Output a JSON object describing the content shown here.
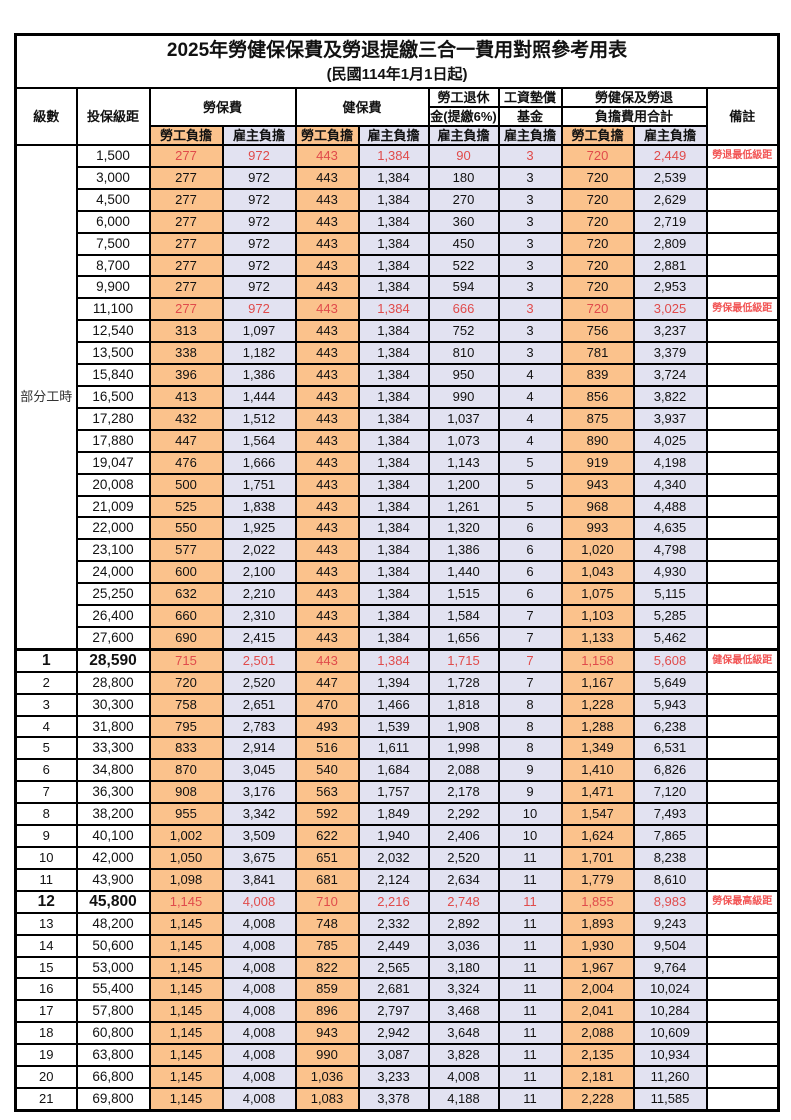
{
  "title": "2025年勞健保保費及勞退提繳三合一費用對照參考用表",
  "subtitle": "(民國114年1月1日起)",
  "colors": {
    "employee_bg": "#fbc28c",
    "employer_bg": "#e2e2f1",
    "highlight_text": "#e04b4b",
    "note_text": "#f25555",
    "border": "#000000"
  },
  "header": {
    "level": "級數",
    "bracket": "投保級距",
    "labor_fee": "勞保費",
    "health_fee": "健保費",
    "pension_line1": "勞工退休",
    "pension_line2": "金(提繳6%)",
    "wage_fund_line1": "工資墊償",
    "wage_fund_line2": "基金",
    "total_line1": "勞健保及勞退",
    "total_line2": "負擔費用合計",
    "note": "備註",
    "employee": "勞工負擔",
    "employer": "雇主負擔"
  },
  "part_time_label": "部分工時",
  "part_time_span": 23,
  "value_col_classes": [
    "emp",
    "er",
    "emp",
    "er",
    "er",
    "er",
    "emp",
    "er"
  ],
  "rows": [
    {
      "level": "",
      "bracket": "1,500",
      "values": [
        "277",
        "972",
        "443",
        "1,384",
        "90",
        "3",
        "720",
        "2,449"
      ],
      "note": "勞退最低級距",
      "red": true,
      "bold": false
    },
    {
      "level": "",
      "bracket": "3,000",
      "values": [
        "277",
        "972",
        "443",
        "1,384",
        "180",
        "3",
        "720",
        "2,539"
      ],
      "note": "",
      "red": false,
      "bold": false
    },
    {
      "level": "",
      "bracket": "4,500",
      "values": [
        "277",
        "972",
        "443",
        "1,384",
        "270",
        "3",
        "720",
        "2,629"
      ],
      "note": "",
      "red": false,
      "bold": false
    },
    {
      "level": "",
      "bracket": "6,000",
      "values": [
        "277",
        "972",
        "443",
        "1,384",
        "360",
        "3",
        "720",
        "2,719"
      ],
      "note": "",
      "red": false,
      "bold": false
    },
    {
      "level": "",
      "bracket": "7,500",
      "values": [
        "277",
        "972",
        "443",
        "1,384",
        "450",
        "3",
        "720",
        "2,809"
      ],
      "note": "",
      "red": false,
      "bold": false
    },
    {
      "level": "",
      "bracket": "8,700",
      "values": [
        "277",
        "972",
        "443",
        "1,384",
        "522",
        "3",
        "720",
        "2,881"
      ],
      "note": "",
      "red": false,
      "bold": false
    },
    {
      "level": "",
      "bracket": "9,900",
      "values": [
        "277",
        "972",
        "443",
        "1,384",
        "594",
        "3",
        "720",
        "2,953"
      ],
      "note": "",
      "red": false,
      "bold": false
    },
    {
      "level": "",
      "bracket": "11,100",
      "values": [
        "277",
        "972",
        "443",
        "1,384",
        "666",
        "3",
        "720",
        "3,025"
      ],
      "note": "勞保最低級距",
      "red": true,
      "bold": false
    },
    {
      "level": "",
      "bracket": "12,540",
      "values": [
        "313",
        "1,097",
        "443",
        "1,384",
        "752",
        "3",
        "756",
        "3,237"
      ],
      "note": "",
      "red": false,
      "bold": false
    },
    {
      "level": "",
      "bracket": "13,500",
      "values": [
        "338",
        "1,182",
        "443",
        "1,384",
        "810",
        "3",
        "781",
        "3,379"
      ],
      "note": "",
      "red": false,
      "bold": false
    },
    {
      "level": "",
      "bracket": "15,840",
      "values": [
        "396",
        "1,386",
        "443",
        "1,384",
        "950",
        "4",
        "839",
        "3,724"
      ],
      "note": "",
      "red": false,
      "bold": false
    },
    {
      "level": "",
      "bracket": "16,500",
      "values": [
        "413",
        "1,444",
        "443",
        "1,384",
        "990",
        "4",
        "856",
        "3,822"
      ],
      "note": "",
      "red": false,
      "bold": false
    },
    {
      "level": "",
      "bracket": "17,280",
      "values": [
        "432",
        "1,512",
        "443",
        "1,384",
        "1,037",
        "4",
        "875",
        "3,937"
      ],
      "note": "",
      "red": false,
      "bold": false
    },
    {
      "level": "",
      "bracket": "17,880",
      "values": [
        "447",
        "1,564",
        "443",
        "1,384",
        "1,073",
        "4",
        "890",
        "4,025"
      ],
      "note": "",
      "red": false,
      "bold": false
    },
    {
      "level": "",
      "bracket": "19,047",
      "values": [
        "476",
        "1,666",
        "443",
        "1,384",
        "1,143",
        "5",
        "919",
        "4,198"
      ],
      "note": "",
      "red": false,
      "bold": false
    },
    {
      "level": "",
      "bracket": "20,008",
      "values": [
        "500",
        "1,751",
        "443",
        "1,384",
        "1,200",
        "5",
        "943",
        "4,340"
      ],
      "note": "",
      "red": false,
      "bold": false
    },
    {
      "level": "",
      "bracket": "21,009",
      "values": [
        "525",
        "1,838",
        "443",
        "1,384",
        "1,261",
        "5",
        "968",
        "4,488"
      ],
      "note": "",
      "red": false,
      "bold": false
    },
    {
      "level": "",
      "bracket": "22,000",
      "values": [
        "550",
        "1,925",
        "443",
        "1,384",
        "1,320",
        "6",
        "993",
        "4,635"
      ],
      "note": "",
      "red": false,
      "bold": false
    },
    {
      "level": "",
      "bracket": "23,100",
      "values": [
        "577",
        "2,022",
        "443",
        "1,384",
        "1,386",
        "6",
        "1,020",
        "4,798"
      ],
      "note": "",
      "red": false,
      "bold": false
    },
    {
      "level": "",
      "bracket": "24,000",
      "values": [
        "600",
        "2,100",
        "443",
        "1,384",
        "1,440",
        "6",
        "1,043",
        "4,930"
      ],
      "note": "",
      "red": false,
      "bold": false
    },
    {
      "level": "",
      "bracket": "25,250",
      "values": [
        "632",
        "2,210",
        "443",
        "1,384",
        "1,515",
        "6",
        "1,075",
        "5,115"
      ],
      "note": "",
      "red": false,
      "bold": false
    },
    {
      "level": "",
      "bracket": "26,400",
      "values": [
        "660",
        "2,310",
        "443",
        "1,384",
        "1,584",
        "7",
        "1,103",
        "5,285"
      ],
      "note": "",
      "red": false,
      "bold": false
    },
    {
      "level": "",
      "bracket": "27,600",
      "values": [
        "690",
        "2,415",
        "443",
        "1,384",
        "1,656",
        "7",
        "1,133",
        "5,462"
      ],
      "note": "",
      "red": false,
      "bold": false
    },
    {
      "level": "1",
      "bracket": "28,590",
      "values": [
        "715",
        "2,501",
        "443",
        "1,384",
        "1,715",
        "7",
        "1,158",
        "5,608"
      ],
      "note": "健保最低級距",
      "red": true,
      "bold": true
    },
    {
      "level": "2",
      "bracket": "28,800",
      "values": [
        "720",
        "2,520",
        "447",
        "1,394",
        "1,728",
        "7",
        "1,167",
        "5,649"
      ],
      "note": "",
      "red": false,
      "bold": false
    },
    {
      "level": "3",
      "bracket": "30,300",
      "values": [
        "758",
        "2,651",
        "470",
        "1,466",
        "1,818",
        "8",
        "1,228",
        "5,943"
      ],
      "note": "",
      "red": false,
      "bold": false
    },
    {
      "level": "4",
      "bracket": "31,800",
      "values": [
        "795",
        "2,783",
        "493",
        "1,539",
        "1,908",
        "8",
        "1,288",
        "6,238"
      ],
      "note": "",
      "red": false,
      "bold": false
    },
    {
      "level": "5",
      "bracket": "33,300",
      "values": [
        "833",
        "2,914",
        "516",
        "1,611",
        "1,998",
        "8",
        "1,349",
        "6,531"
      ],
      "note": "",
      "red": false,
      "bold": false
    },
    {
      "level": "6",
      "bracket": "34,800",
      "values": [
        "870",
        "3,045",
        "540",
        "1,684",
        "2,088",
        "9",
        "1,410",
        "6,826"
      ],
      "note": "",
      "red": false,
      "bold": false
    },
    {
      "level": "7",
      "bracket": "36,300",
      "values": [
        "908",
        "3,176",
        "563",
        "1,757",
        "2,178",
        "9",
        "1,471",
        "7,120"
      ],
      "note": "",
      "red": false,
      "bold": false
    },
    {
      "level": "8",
      "bracket": "38,200",
      "values": [
        "955",
        "3,342",
        "592",
        "1,849",
        "2,292",
        "10",
        "1,547",
        "7,493"
      ],
      "note": "",
      "red": false,
      "bold": false
    },
    {
      "level": "9",
      "bracket": "40,100",
      "values": [
        "1,002",
        "3,509",
        "622",
        "1,940",
        "2,406",
        "10",
        "1,624",
        "7,865"
      ],
      "note": "",
      "red": false,
      "bold": false
    },
    {
      "level": "10",
      "bracket": "42,000",
      "values": [
        "1,050",
        "3,675",
        "651",
        "2,032",
        "2,520",
        "11",
        "1,701",
        "8,238"
      ],
      "note": "",
      "red": false,
      "bold": false
    },
    {
      "level": "11",
      "bracket": "43,900",
      "values": [
        "1,098",
        "3,841",
        "681",
        "2,124",
        "2,634",
        "11",
        "1,779",
        "8,610"
      ],
      "note": "",
      "red": false,
      "bold": false
    },
    {
      "level": "12",
      "bracket": "45,800",
      "values": [
        "1,145",
        "4,008",
        "710",
        "2,216",
        "2,748",
        "11",
        "1,855",
        "8,983"
      ],
      "note": "勞保最高級距",
      "red": true,
      "bold": true
    },
    {
      "level": "13",
      "bracket": "48,200",
      "values": [
        "1,145",
        "4,008",
        "748",
        "2,332",
        "2,892",
        "11",
        "1,893",
        "9,243"
      ],
      "note": "",
      "red": false,
      "bold": false
    },
    {
      "level": "14",
      "bracket": "50,600",
      "values": [
        "1,145",
        "4,008",
        "785",
        "2,449",
        "3,036",
        "11",
        "1,930",
        "9,504"
      ],
      "note": "",
      "red": false,
      "bold": false
    },
    {
      "level": "15",
      "bracket": "53,000",
      "values": [
        "1,145",
        "4,008",
        "822",
        "2,565",
        "3,180",
        "11",
        "1,967",
        "9,764"
      ],
      "note": "",
      "red": false,
      "bold": false
    },
    {
      "level": "16",
      "bracket": "55,400",
      "values": [
        "1,145",
        "4,008",
        "859",
        "2,681",
        "3,324",
        "11",
        "2,004",
        "10,024"
      ],
      "note": "",
      "red": false,
      "bold": false
    },
    {
      "level": "17",
      "bracket": "57,800",
      "values": [
        "1,145",
        "4,008",
        "896",
        "2,797",
        "3,468",
        "11",
        "2,041",
        "10,284"
      ],
      "note": "",
      "red": false,
      "bold": false
    },
    {
      "level": "18",
      "bracket": "60,800",
      "values": [
        "1,145",
        "4,008",
        "943",
        "2,942",
        "3,648",
        "11",
        "2,088",
        "10,609"
      ],
      "note": "",
      "red": false,
      "bold": false
    },
    {
      "level": "19",
      "bracket": "63,800",
      "values": [
        "1,145",
        "4,008",
        "990",
        "3,087",
        "3,828",
        "11",
        "2,135",
        "10,934"
      ],
      "note": "",
      "red": false,
      "bold": false
    },
    {
      "level": "20",
      "bracket": "66,800",
      "values": [
        "1,145",
        "4,008",
        "1,036",
        "3,233",
        "4,008",
        "11",
        "2,181",
        "11,260"
      ],
      "note": "",
      "red": false,
      "bold": false
    },
    {
      "level": "21",
      "bracket": "69,800",
      "values": [
        "1,145",
        "4,008",
        "1,083",
        "3,378",
        "4,188",
        "11",
        "2,228",
        "11,585"
      ],
      "note": "",
      "red": false,
      "bold": false
    }
  ]
}
